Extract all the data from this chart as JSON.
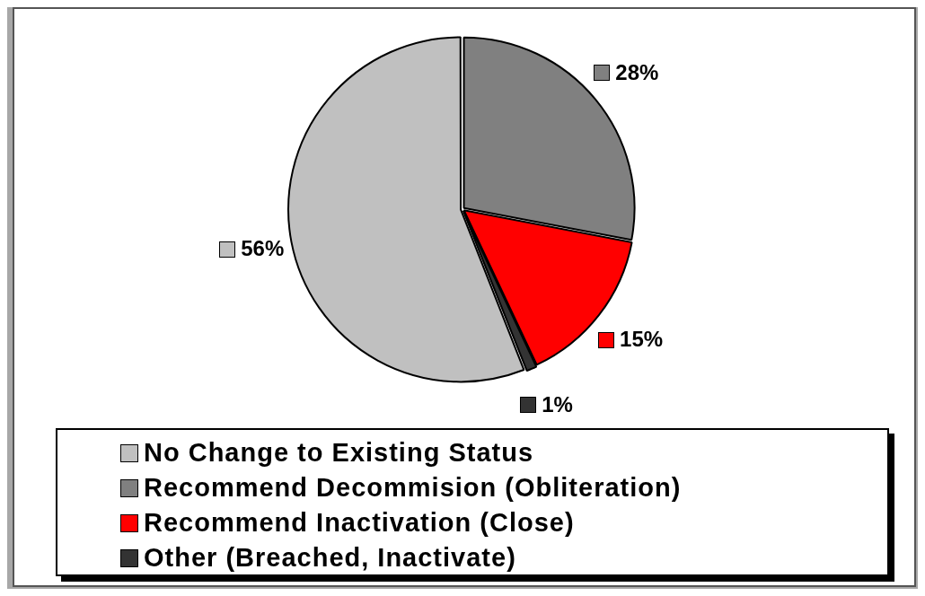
{
  "chart_data": {
    "type": "pie",
    "categories": [
      "No Change to Existing Status",
      "Recommend Decommision (Obliteration)",
      "Recommend Inactivation (Close)",
      "Other (Breached, Inactivate)"
    ],
    "values": [
      56,
      28,
      15,
      1
    ],
    "colors": [
      "#c0c0c0",
      "#808080",
      "#ff0000",
      "#333333"
    ],
    "value_labels": [
      "56%",
      "28%",
      "15%",
      "1%"
    ],
    "legend": "bottom"
  }
}
